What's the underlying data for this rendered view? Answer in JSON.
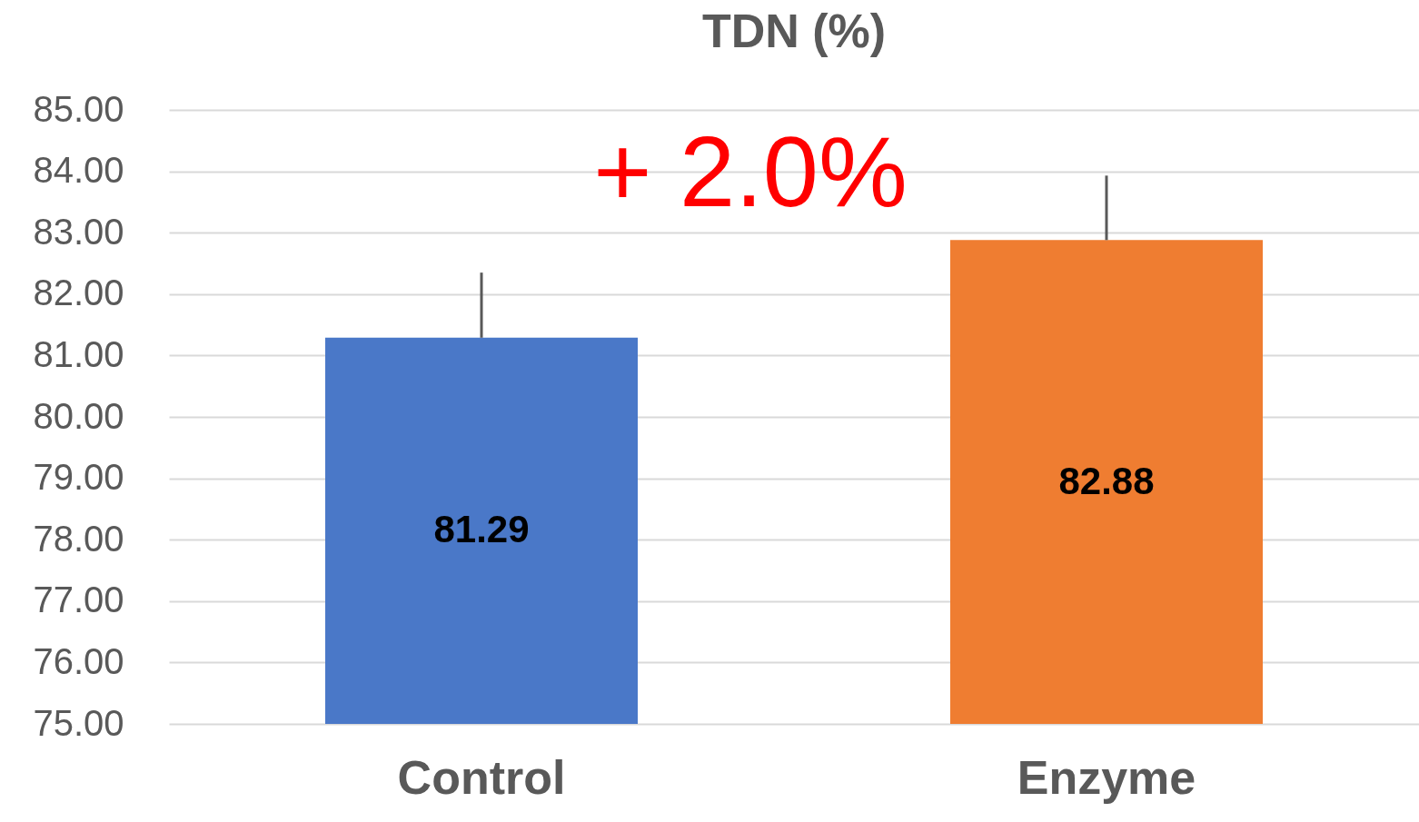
{
  "chart_data": {
    "type": "bar",
    "title": "TDN (%)",
    "categories": [
      "Control",
      "Enzyme"
    ],
    "values": [
      81.29,
      82.88
    ],
    "colors": [
      "#4a78c8",
      "#ef7d31"
    ],
    "errors": [
      [
        81.29,
        82.35
      ],
      [
        82.88,
        83.93
      ]
    ],
    "data_labels": true,
    "annotations": [
      "+ 2.0%"
    ],
    "ylim": [
      75,
      85
    ],
    "yticks": [
      {
        "value": 75,
        "label": "75.00"
      },
      {
        "value": 76,
        "label": "76.00"
      },
      {
        "value": 77,
        "label": "77.00"
      },
      {
        "value": 78,
        "label": "78.00"
      },
      {
        "value": 79,
        "label": "79.00"
      },
      {
        "value": 80,
        "label": "80.00"
      },
      {
        "value": 81,
        "label": "81.00"
      },
      {
        "value": 82,
        "label": "82.00"
      },
      {
        "value": 83,
        "label": "83.00"
      },
      {
        "value": 84,
        "label": "84.00"
      },
      {
        "value": 85,
        "label": "85.00"
      }
    ],
    "grid": "y"
  }
}
